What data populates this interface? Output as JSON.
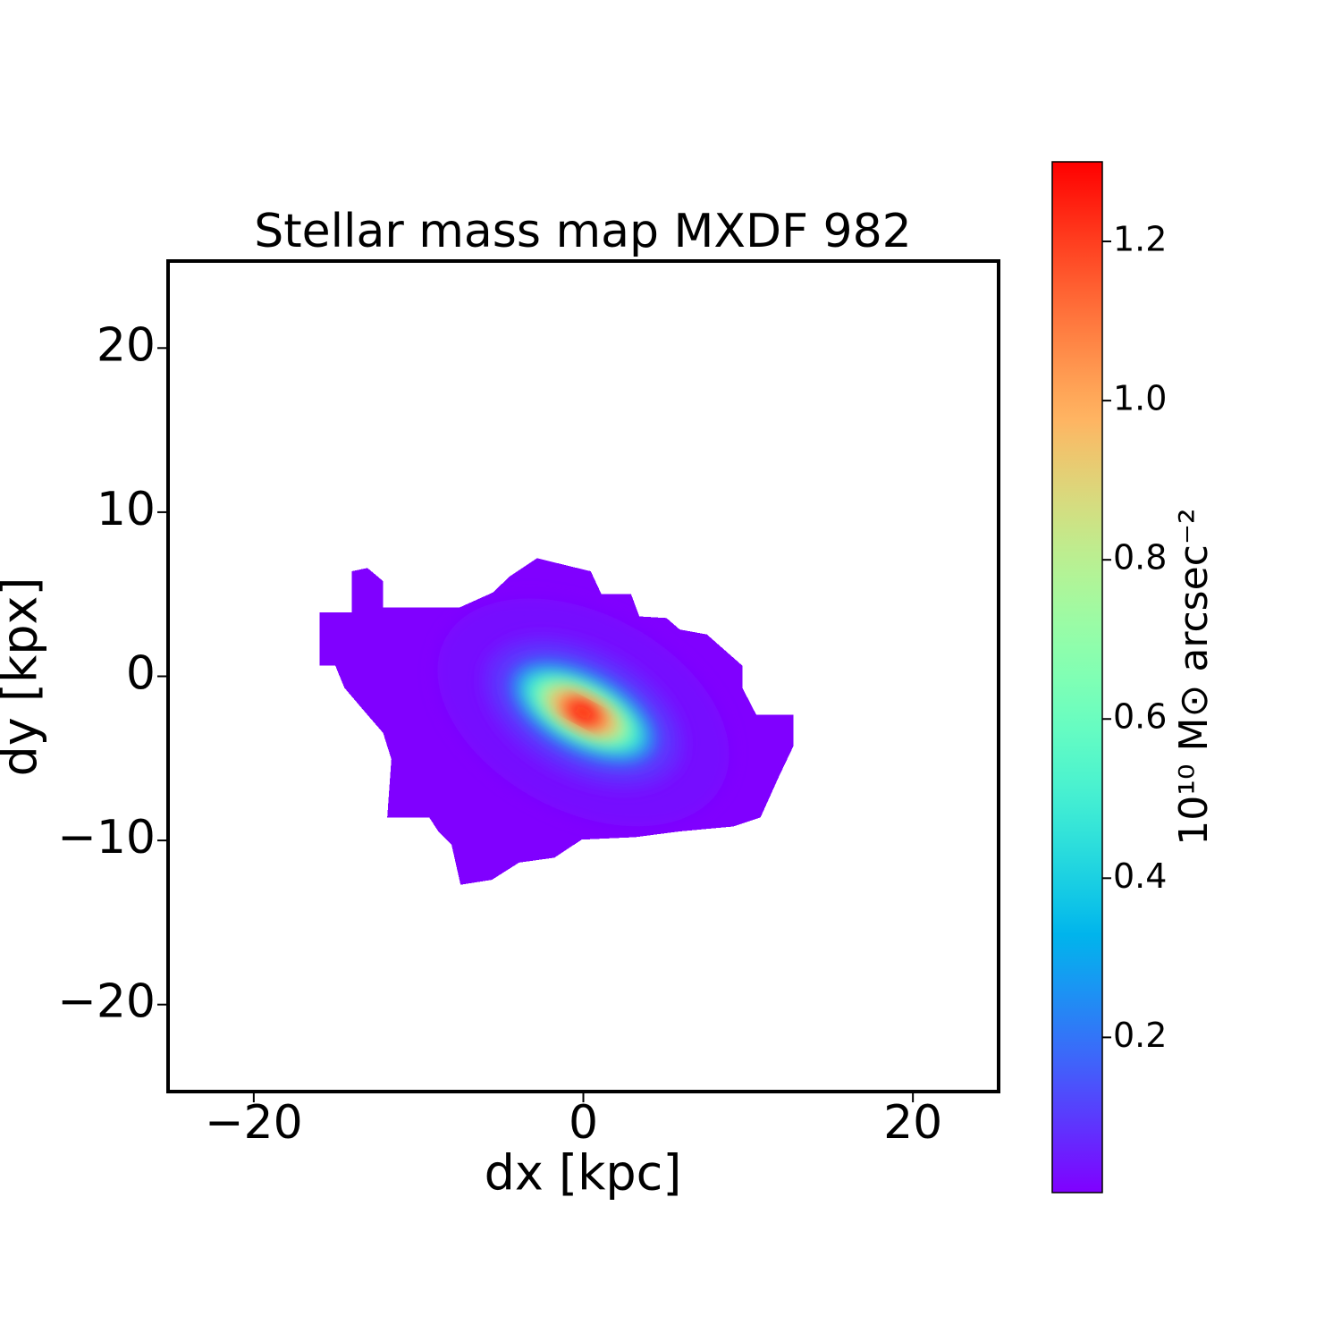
{
  "chart_data": {
    "type": "image",
    "title": "Stellar mass map MXDF 982",
    "x_label": "dx [kpc]",
    "y_label": "dy [kpx]",
    "xlim": [
      -25.2,
      25.2
    ],
    "ylim": [
      -25.3,
      25.3
    ],
    "xticks": [
      {
        "value": -20,
        "label": "−20"
      },
      0,
      20
    ],
    "yticks": [
      {
        "value": -20,
        "label": "−20"
      },
      {
        "value": -10,
        "label": "−10"
      },
      0,
      10,
      20
    ],
    "colormap": "rainbow",
    "colorbar_label": "10¹⁰ M⊙ arcsec⁻²",
    "clim": [
      0.005,
      1.3
    ],
    "colorbar_ticks": [
      0.2,
      0.4,
      0.6,
      0.8,
      1.0,
      1.2
    ],
    "outline": {
      "x": [
        -16.0,
        -14.05,
        -14.05,
        -13.1,
        -12.15,
        -12.15,
        -7.5,
        -5.5,
        -4.45,
        -2.8,
        -1.2,
        0.45,
        1.1,
        2.9,
        3.4,
        5.05,
        5.85,
        7.5,
        9.65,
        9.65,
        10.5,
        12.75,
        12.75,
        11.85,
        10.75,
        9.1,
        5.85,
        3.15,
        -0.1,
        -1.75,
        -3.9,
        -5.55,
        -7.45,
        -8.0,
        -8.8,
        -9.35,
        -11.9,
        -11.65,
        -12.15,
        -13.1,
        -14.5,
        -15.05,
        -16.0
      ],
      "y": [
        3.9,
        3.9,
        6.4,
        6.6,
        5.8,
        4.2,
        4.2,
        5.1,
        6.1,
        7.2,
        6.8,
        6.4,
        5.0,
        5.0,
        3.65,
        3.55,
        2.85,
        2.55,
        0.65,
        -0.7,
        -2.35,
        -2.35,
        -4.25,
        -6.15,
        -8.6,
        -9.15,
        -9.45,
        -9.8,
        -9.95,
        -11.05,
        -11.35,
        -12.4,
        -12.7,
        -10.25,
        -9.45,
        -8.6,
        -8.6,
        -5.05,
        -3.45,
        -2.35,
        -0.7,
        0.65,
        0.65
      ]
    },
    "center": [
      0.0,
      -2.2
    ],
    "angle": -28,
    "isodensity": [
      {
        "level": 0.03,
        "a": 9.5,
        "b": 6.0
      },
      {
        "level": 0.08,
        "a": 6.5,
        "b": 3.8
      },
      {
        "level": 0.2,
        "a": 5.0,
        "b": 2.6
      },
      {
        "level": 0.45,
        "a": 4.2,
        "b": 1.9
      },
      {
        "level": 0.7,
        "a": 3.3,
        "b": 1.45
      },
      {
        "level": 0.95,
        "a": 2.4,
        "b": 1.05
      },
      {
        "level": 1.15,
        "a": 1.5,
        "b": 0.7
      },
      {
        "level": 1.28,
        "a": 0.8,
        "b": 0.42
      }
    ]
  }
}
